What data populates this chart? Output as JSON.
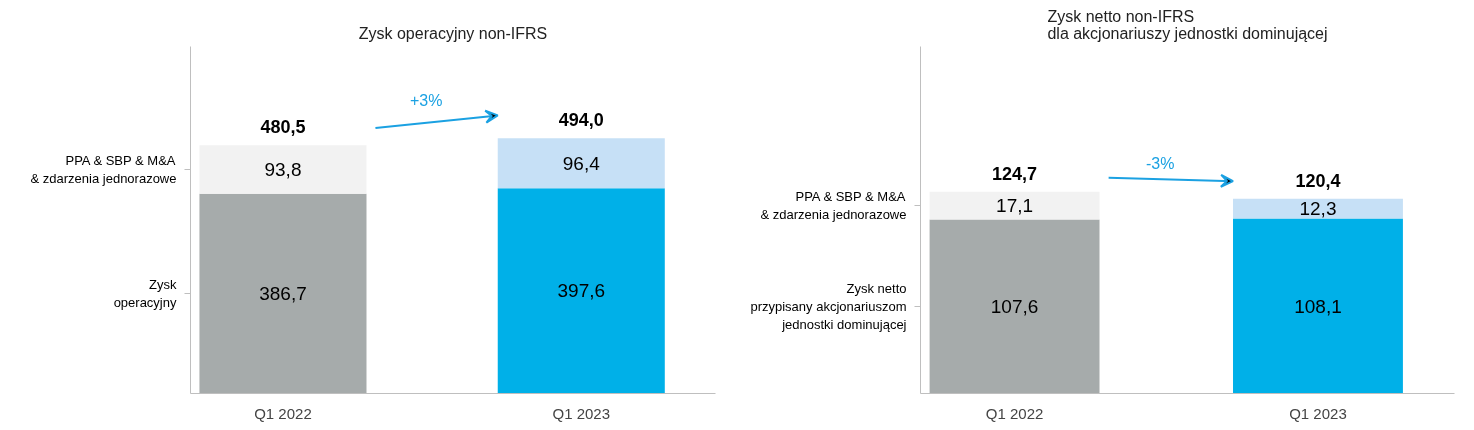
{
  "chart_data": [
    {
      "type": "bar",
      "title": "Zysk operacyjny non-IFRS",
      "categories": [
        "Q1 2022",
        "Q1 2023"
      ],
      "stacked": true,
      "data_labels": false,
      "totals": [
        "480,5",
        "494,0"
      ],
      "annotations": [
        "+3%"
      ],
      "series": [
        {
          "name": "Zysk\noperacyjny",
          "colors": [
            "#a6abab",
            "#00b0e8"
          ],
          "values": [
            386.7,
            397.6
          ],
          "value_labels": [
            "386,7",
            "397,6"
          ]
        },
        {
          "name": "PPA & SBP & M&A\n& zdarzenia jednorazowe",
          "colors": [
            "#f2f2f2",
            "#c6e0f6"
          ],
          "values": [
            93.8,
            96.4
          ],
          "value_labels": [
            "93,8",
            "96,4"
          ]
        }
      ]
    },
    {
      "type": "bar",
      "title": "Zysk netto non-IFRS\ndla akcjonariuszy jednostki dominującej",
      "categories": [
        "Q1 2022",
        "Q1 2023"
      ],
      "stacked": true,
      "data_labels": false,
      "totals": [
        "124,7",
        "120,4"
      ],
      "annotations": [
        "-3%"
      ],
      "series": [
        {
          "name": "Zysk netto\nprzypisany akcjonariuszom\njednostki dominującej",
          "colors": [
            "#a6abab",
            "#00b0e8"
          ],
          "values": [
            107.6,
            108.1
          ],
          "value_labels": [
            "107,6",
            "108,1"
          ]
        },
        {
          "name": "PPA & SBP & M&A\n& zdarzenia jednorazowe",
          "colors": [
            "#f2f2f2",
            "#c6e0f6"
          ],
          "values": [
            17.1,
            12.3
          ],
          "value_labels": [
            "17,1",
            "12,3"
          ]
        }
      ]
    }
  ]
}
